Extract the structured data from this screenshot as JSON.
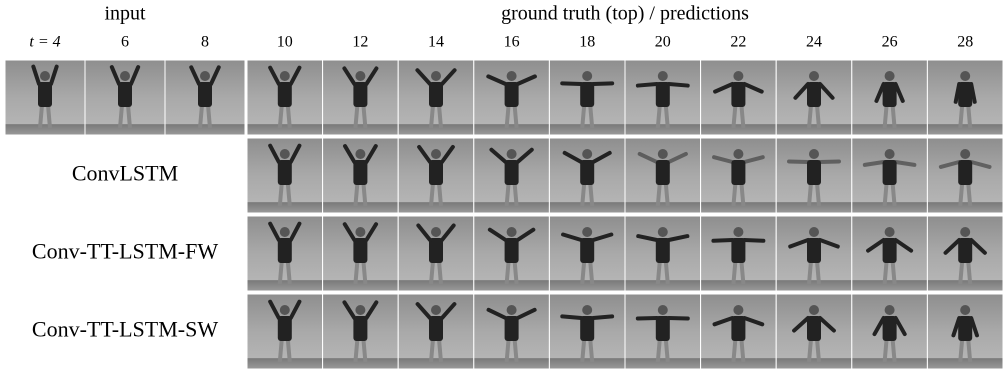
{
  "header": {
    "input": "input",
    "predictions": "ground truth (top) / predictions"
  },
  "columns": [
    "t = 4",
    "6",
    "8",
    "10",
    "12",
    "14",
    "16",
    "18",
    "20",
    "22",
    "24",
    "26",
    "28"
  ],
  "rows": [
    "ConvLSTM",
    "Conv-TT-LSTM-FW",
    "Conv-TT-LSTM-SW"
  ]
}
